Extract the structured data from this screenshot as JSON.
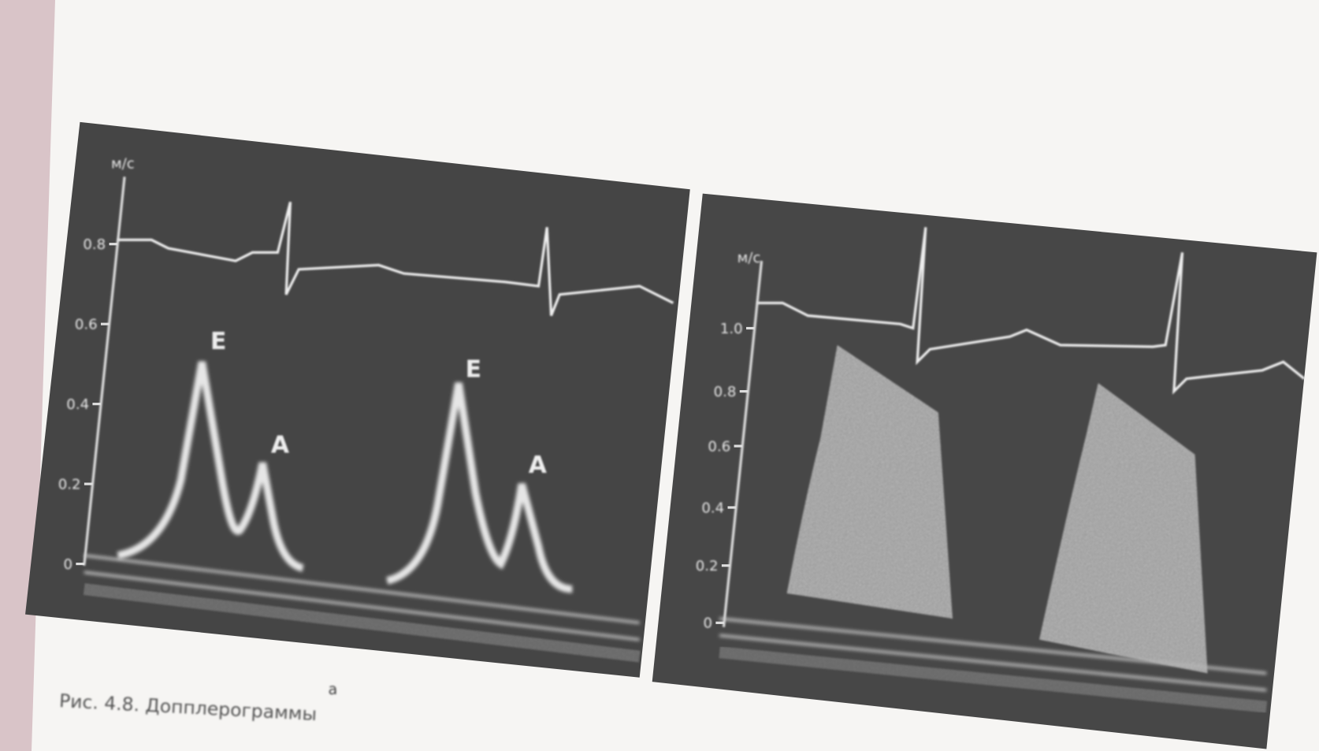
{
  "figure": {
    "panels": [
      {
        "unit": "м/с",
        "ticks": [
          "0.8",
          "0.6",
          "0.4",
          "0.2",
          "0"
        ],
        "peaks": [
          "E",
          "A",
          "E",
          "A"
        ],
        "sublabel": "а"
      },
      {
        "unit": "м/с",
        "ticks": [
          "1.0",
          "0.8",
          "0.6",
          "0.4",
          "0.2",
          "0"
        ]
      }
    ],
    "caption": "Рис. 4.8. Допплерограммы"
  }
}
